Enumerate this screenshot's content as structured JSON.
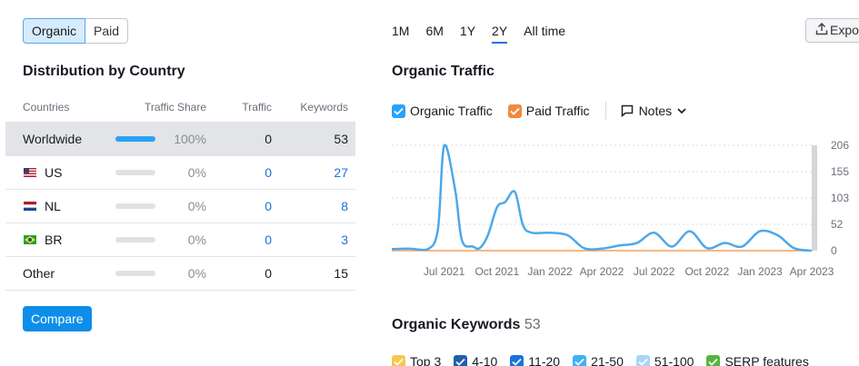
{
  "toggle": {
    "organic": "Organic",
    "paid": "Paid"
  },
  "distribution": {
    "title": "Distribution by Country",
    "headers": {
      "countries": "Countries",
      "share": "Traffic Share",
      "traffic": "Traffic",
      "keywords": "Keywords"
    },
    "rows": [
      {
        "name": "Worldwide",
        "share": "100%",
        "share_fraction": 1.0,
        "traffic": "0",
        "keywords": "53",
        "flag": ""
      },
      {
        "name": "US",
        "share": "0%",
        "share_fraction": 0,
        "traffic": "0",
        "keywords": "27",
        "flag": "us-flag-icon"
      },
      {
        "name": "NL",
        "share": "0%",
        "share_fraction": 0,
        "traffic": "0",
        "keywords": "8",
        "flag": "nl-flag-icon"
      },
      {
        "name": "BR",
        "share": "0%",
        "share_fraction": 0,
        "traffic": "0",
        "keywords": "3",
        "flag": "br-flag-icon"
      },
      {
        "name": "Other",
        "share": "0%",
        "share_fraction": 0,
        "traffic": "0",
        "keywords": "15",
        "flag": ""
      }
    ],
    "compare": "Compare"
  },
  "periods": [
    "1M",
    "6M",
    "1Y",
    "2Y",
    "All time"
  ],
  "active_period": "2Y",
  "export": {
    "label": "Expo",
    "icon": "upload-icon"
  },
  "traffic": {
    "title": "Organic Traffic",
    "legend": {
      "organic": "Organic Traffic",
      "paid": "Paid Traffic",
      "notes": "Notes"
    },
    "colors": {
      "organic": "#4ea8e8",
      "paid": "#f5a25d",
      "check_blue": "#2aa3f6",
      "check_orange": "#f08a3c"
    }
  },
  "chart_data": {
    "type": "line",
    "x_ticks": [
      "Jul 2021",
      "Oct 2021",
      "Jan 2022",
      "Apr 2022",
      "Jul 2022",
      "Oct 2022",
      "Jan 2023",
      "Apr 2023"
    ],
    "y_ticks": [
      "206",
      "155",
      "103",
      "52",
      "0"
    ],
    "ylim": [
      0,
      206
    ],
    "series": [
      {
        "name": "Organic Traffic",
        "color": "#4ea8e8",
        "x": [
          "2021-04",
          "2021-05",
          "2021-06",
          "2021-06-20",
          "2021-07",
          "2021-07-20",
          "2021-08",
          "2021-08-20",
          "2021-09",
          "2021-09-15",
          "2021-10",
          "2021-10-15",
          "2021-11",
          "2021-11-15",
          "2021-12",
          "2022-01",
          "2022-02",
          "2022-03",
          "2022-04",
          "2022-05",
          "2022-06",
          "2022-07",
          "2022-08",
          "2022-09",
          "2022-10",
          "2022-11",
          "2022-12",
          "2023-01",
          "2023-02",
          "2023-03",
          "2023-04"
        ],
        "values": [
          3,
          4,
          2,
          40,
          205,
          120,
          20,
          8,
          5,
          30,
          85,
          95,
          115,
          50,
          35,
          35,
          30,
          5,
          4,
          10,
          15,
          35,
          8,
          38,
          5,
          15,
          8,
          38,
          30,
          5,
          0
        ]
      },
      {
        "name": "Paid Traffic",
        "color": "#f5a25d",
        "x": [
          "2021-04",
          "2023-04"
        ],
        "values": [
          0,
          0
        ]
      }
    ]
  },
  "keywords": {
    "title": "Organic Keywords",
    "count": "53",
    "legend": [
      {
        "label": "Top 3",
        "color": "#f7c84b"
      },
      {
        "label": "4-10",
        "color": "#1f5fae"
      },
      {
        "label": "11-20",
        "color": "#1a73d9"
      },
      {
        "label": "21-50",
        "color": "#3fb2f3"
      },
      {
        "label": "51-100",
        "color": "#a8d6f6"
      },
      {
        "label": "SERP features",
        "color": "#55b53f"
      }
    ]
  }
}
